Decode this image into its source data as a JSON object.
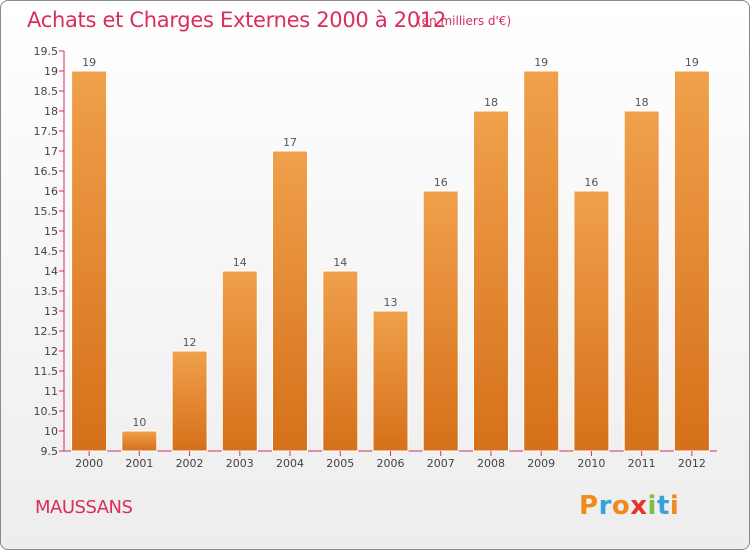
{
  "chart_data": {
    "type": "bar",
    "title": "Achats et Charges Externes 2000 à 2012",
    "subtitle": "(en milliers d'€)",
    "xlabel": "",
    "ylabel": "",
    "categories": [
      "2000",
      "2001",
      "2002",
      "2003",
      "2004",
      "2005",
      "2006",
      "2007",
      "2008",
      "2009",
      "2010",
      "2011",
      "2012"
    ],
    "values": [
      19,
      10,
      12,
      14,
      17,
      14,
      13,
      16,
      18,
      19,
      16,
      18,
      19
    ],
    "data_labels": [
      "19",
      "10",
      "12",
      "14",
      "17",
      "14",
      "13",
      "16",
      "18",
      "19",
      "16",
      "18",
      "19"
    ],
    "ylim": [
      9.5,
      19.5
    ],
    "y_ticks": [
      "9.5",
      "10",
      "10.5",
      "11",
      "11.5",
      "12",
      "12.5",
      "13",
      "13.5",
      "14",
      "14.5",
      "15",
      "15.5",
      "16",
      "16.5",
      "17",
      "17.5",
      "18",
      "18.5",
      "19",
      "19.5"
    ],
    "grid": false,
    "legend": "none",
    "bar_color": "#f0a04b",
    "bar_color_dark": "#d6701a",
    "axis_color": "#d92d5a"
  },
  "footer": {
    "commune": "MAUSSANS",
    "logo_text": "Proxiti"
  },
  "colors": {
    "title": "#d92d5a",
    "logo_letters": [
      "#f08a1c",
      "#3aa0d8",
      "#f08a1c",
      "#e8322a",
      "#7cc242",
      "#3aa0d8",
      "#f08a1c"
    ]
  }
}
